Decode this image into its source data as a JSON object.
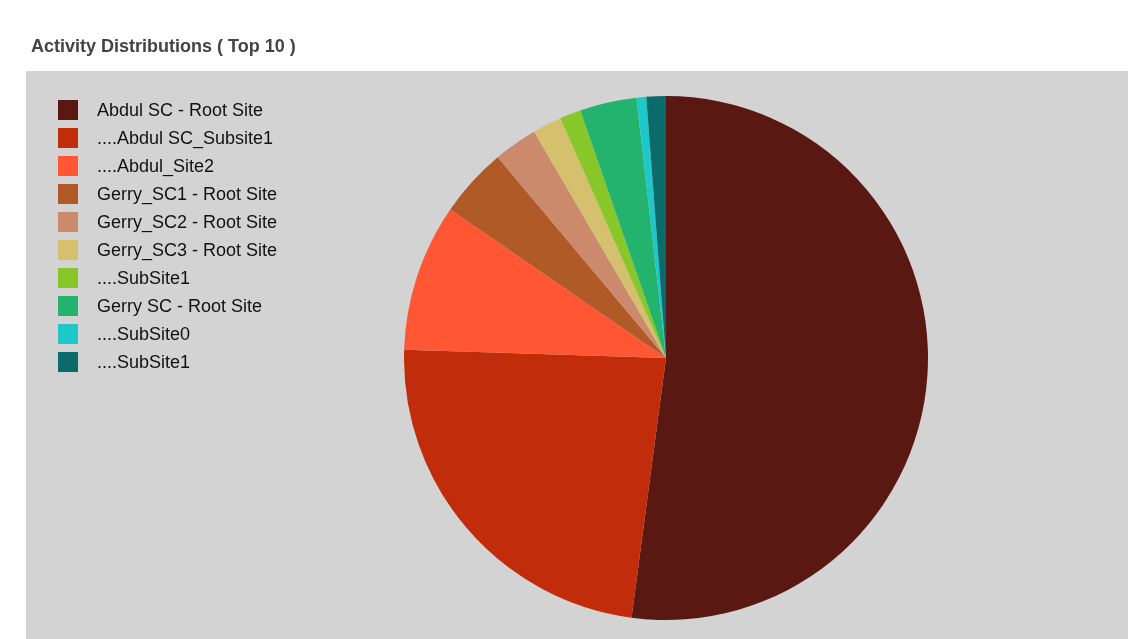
{
  "chart_data": {
    "type": "pie",
    "title": "Activity Distributions ( Top 10 )",
    "categories": [
      "Abdul SC - Root Site",
      "....Abdul SC_Subsite1",
      "....Abdul_Site2",
      "Gerry_SC1 - Root Site",
      "Gerry_SC2 - Root Site",
      "Gerry_SC3 - Root Site",
      "....SubSite1",
      "Gerry SC - Root Site",
      "....SubSite0",
      "....SubSite1"
    ],
    "values": [
      52.1,
      23.4,
      9.1,
      4.3,
      2.7,
      1.8,
      1.3,
      3.5,
      0.6,
      1.2
    ],
    "colors": [
      "#5a1812",
      "#c12d0a",
      "#ff5733",
      "#b05a28",
      "#cb8a6c",
      "#d4c06d",
      "#88c72a",
      "#24b36f",
      "#1ec8c8",
      "#0b6a6a"
    ],
    "legend": "top left"
  }
}
